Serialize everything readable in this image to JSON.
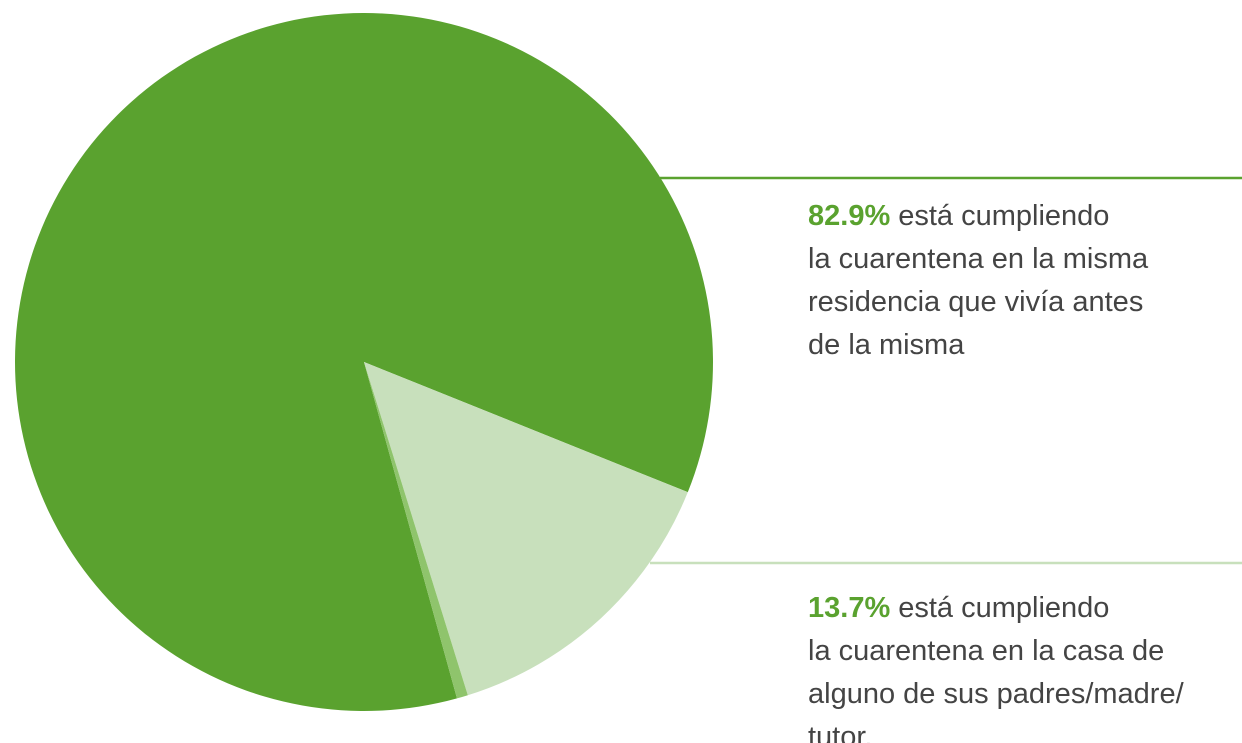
{
  "chart_data": {
    "type": "pie",
    "colors": [
      "#5aa22f",
      "#c8e0bc",
      "#8fc46c"
    ],
    "values": [
      82.9,
      13.7,
      0.5
    ],
    "value_labels": [
      "82.9%",
      "13.7%",
      null
    ],
    "label_lines": [
      [
        "está cumpliendo",
        "la cuarentena en la misma",
        "residencia que vivía antes",
        "de la misma"
      ],
      [
        "está cumpliendo",
        "la cuarentena en la casa de",
        "alguno de sus padres/madre/",
        "tutor."
      ],
      null
    ]
  }
}
